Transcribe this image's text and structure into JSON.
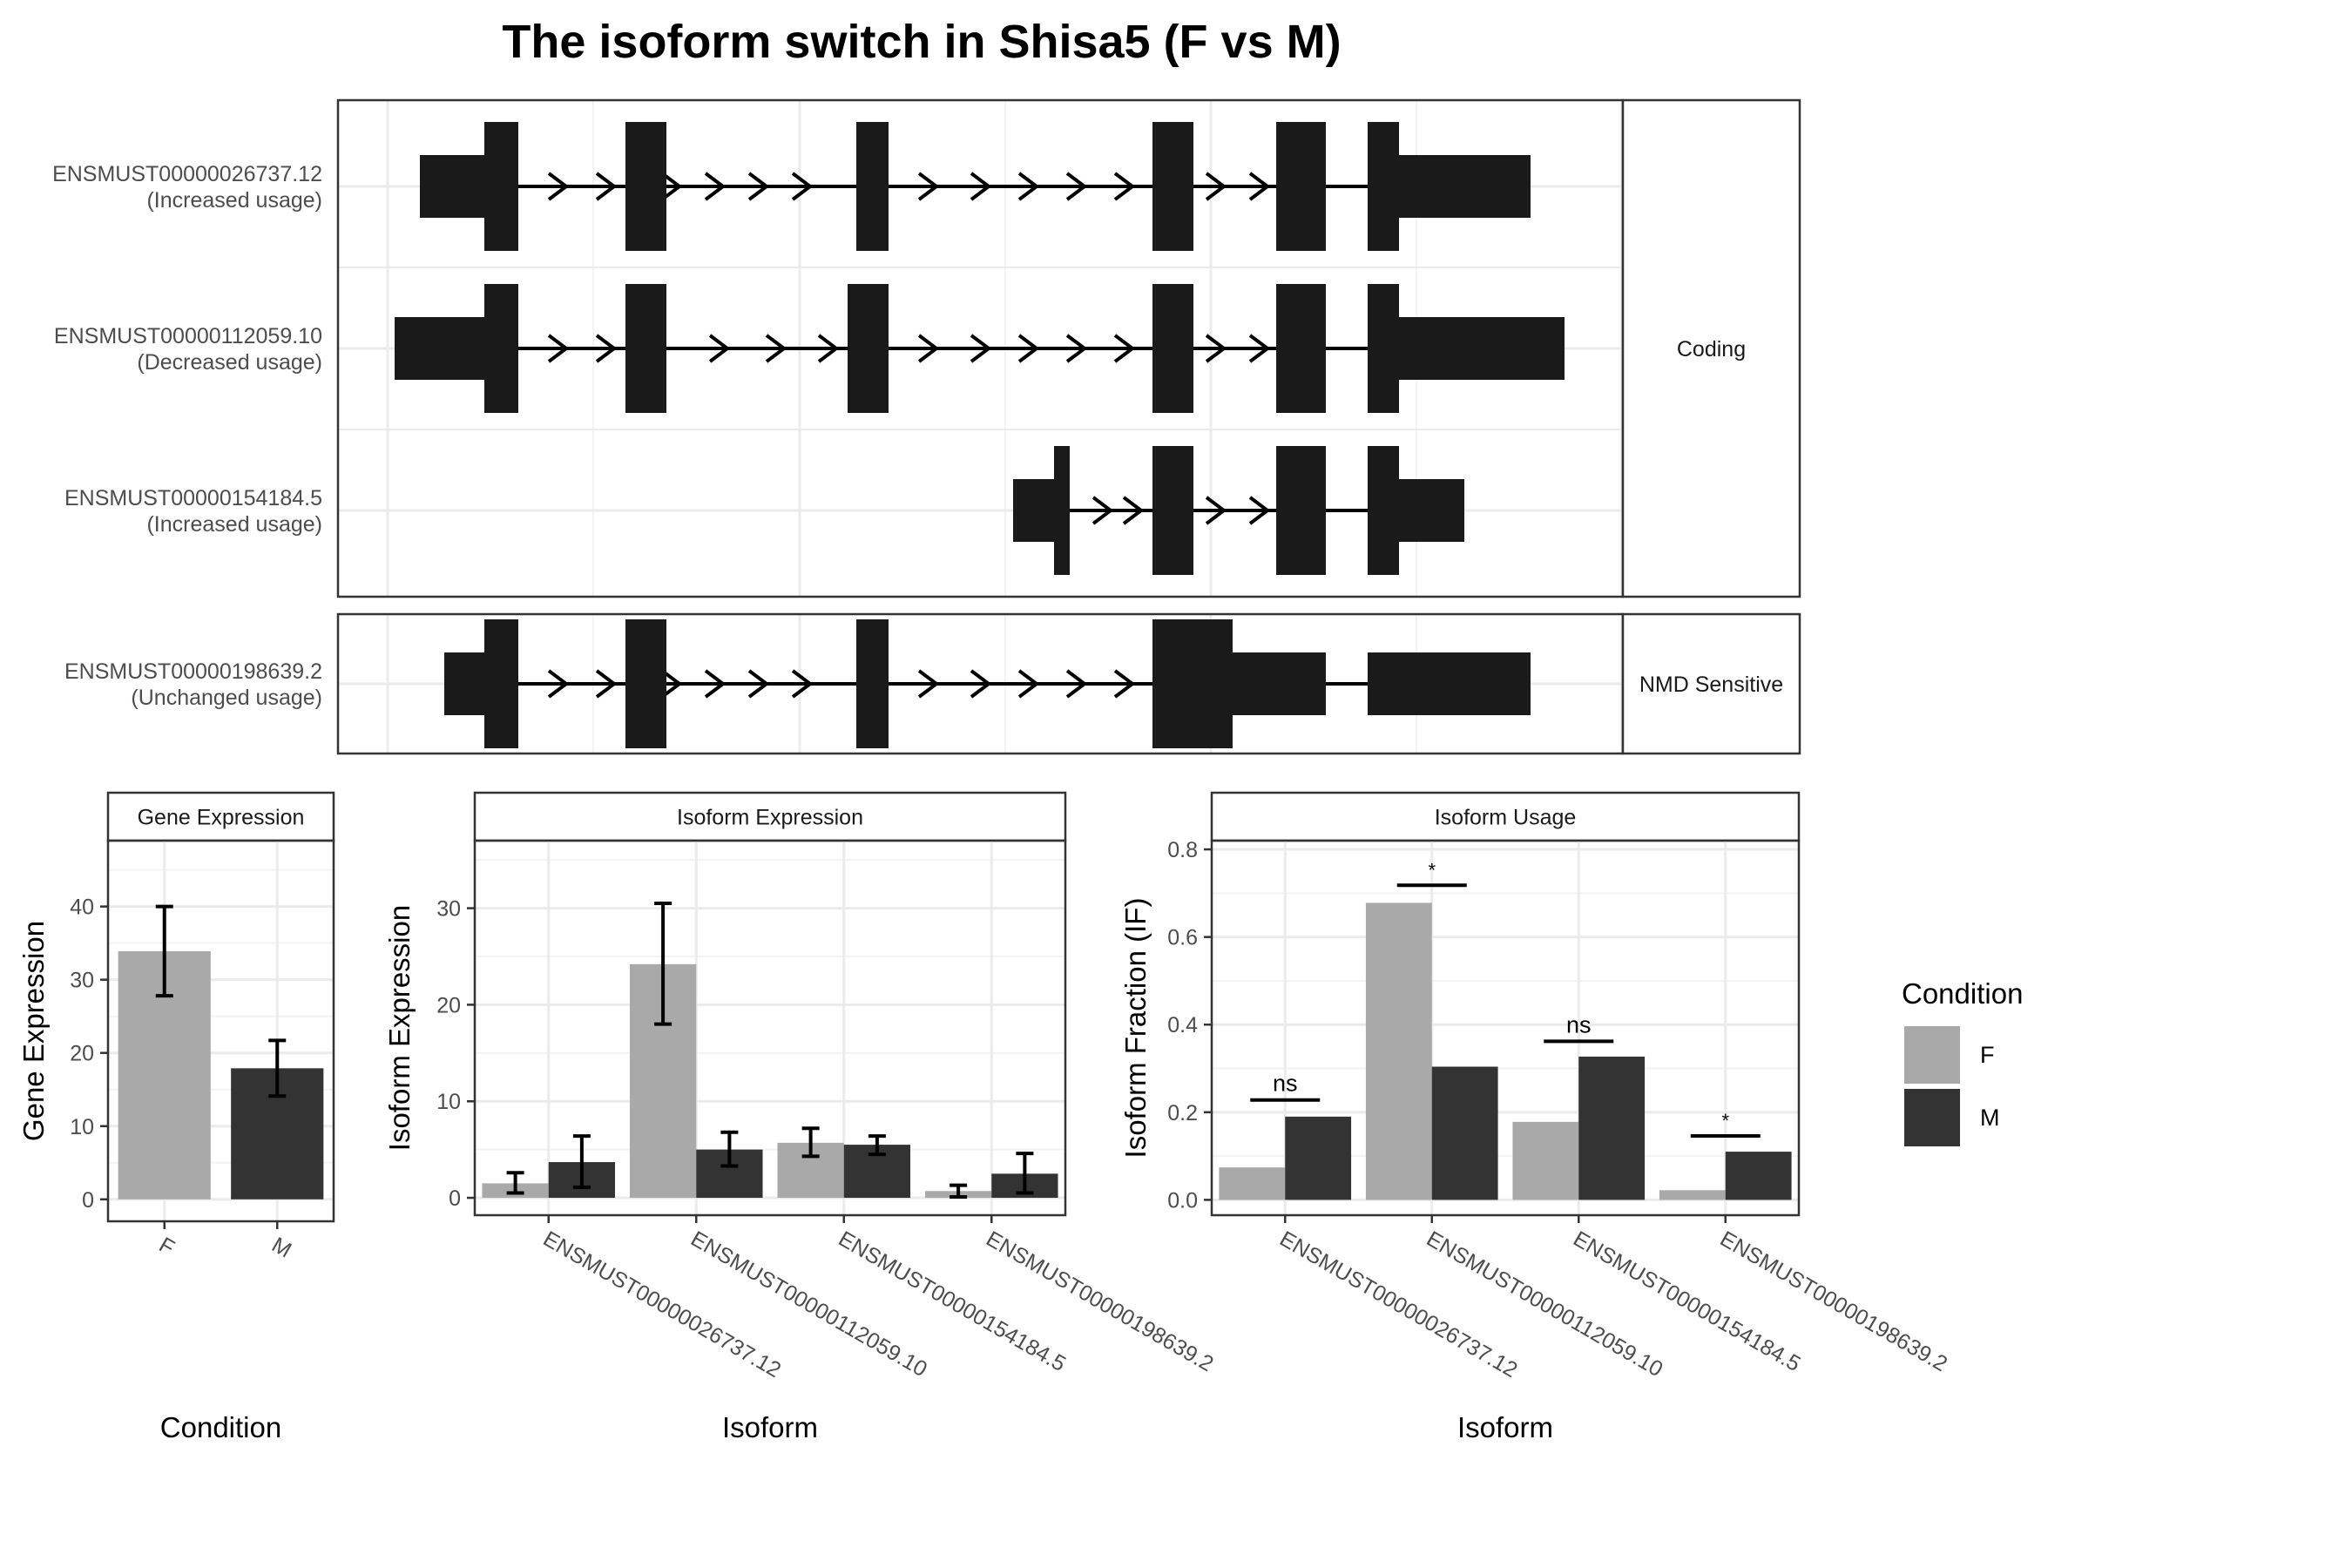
{
  "title": "The isoform switch in Shisa5 (F vs M)",
  "colors": {
    "F": "#a9a9a9",
    "M": "#333333",
    "exon": "#1a1a1a",
    "grid": "#ebebeb",
    "panel_border": "#333333"
  },
  "transcripts": {
    "groups": [
      {
        "strip": "Coding",
        "rows": [
          {
            "id": "ENSMUST00000026737.12",
            "usage": "(Increased usage)"
          },
          {
            "id": "ENSMUST00000112059.10",
            "usage": "(Decreased usage)"
          },
          {
            "id": "ENSMUST00000154184.5",
            "usage": "(Increased usage)"
          }
        ]
      },
      {
        "strip": "NMD Sensitive",
        "rows": [
          {
            "id": "ENSMUST00000198639.2",
            "usage": "(Unchanged usage)"
          }
        ]
      }
    ]
  },
  "chart_data": [
    {
      "type": "bar",
      "strip": "Gene Expression",
      "xlabel": "Condition",
      "ylabel": "Gene Expression",
      "ylim": [
        -3,
        49
      ],
      "yticks": [
        0,
        10,
        20,
        30,
        40
      ],
      "categories": [
        "F",
        "M"
      ],
      "values": [
        33.9,
        17.9
      ],
      "err_low": [
        27.8,
        14.1
      ],
      "err_high": [
        40.0,
        21.7
      ]
    },
    {
      "type": "bar",
      "strip": "Isoform Expression",
      "xlabel": "Isoform",
      "ylabel": "Isoform Expression",
      "ylim": [
        -1.8,
        37
      ],
      "yticks": [
        0,
        10,
        20,
        30
      ],
      "categories": [
        "ENSMUST00000026737.12",
        "ENSMUST00000112059.10",
        "ENSMUST00000154184.5",
        "ENSMUST00000198639.2"
      ],
      "series": [
        {
          "name": "F",
          "values": [
            1.5,
            24.2,
            5.7,
            0.7
          ],
          "err_low": [
            0.5,
            18.0,
            4.3,
            0.1
          ],
          "err_high": [
            2.6,
            30.5,
            7.2,
            1.3
          ]
        },
        {
          "name": "M",
          "values": [
            3.7,
            5.0,
            5.5,
            2.5
          ],
          "err_low": [
            1.1,
            3.3,
            4.5,
            0.5
          ],
          "err_high": [
            6.4,
            6.8,
            6.4,
            4.6
          ]
        }
      ]
    },
    {
      "type": "bar",
      "strip": "Isoform Usage",
      "xlabel": "Isoform",
      "ylabel": "Isoform Fraction (IF)",
      "ylim": [
        -0.035,
        0.82
      ],
      "yticks": [
        0.0,
        0.2,
        0.4,
        0.6,
        0.8
      ],
      "ytick_labels": [
        "0.0",
        "0.2",
        "0.4",
        "0.6",
        "0.8"
      ],
      "categories": [
        "ENSMUST00000026737.12",
        "ENSMUST00000112059.10",
        "ENSMUST00000154184.5",
        "ENSMUST00000198639.2"
      ],
      "series": [
        {
          "name": "F",
          "values": [
            0.074,
            0.678,
            0.178,
            0.022
          ]
        },
        {
          "name": "M",
          "values": [
            0.19,
            0.304,
            0.327,
            0.11
          ]
        }
      ],
      "significance": [
        {
          "label": "ns",
          "y": 0.228
        },
        {
          "label": "*",
          "y": 0.718
        },
        {
          "label": "ns",
          "y": 0.362
        },
        {
          "label": "*",
          "y": 0.146
        }
      ]
    }
  ],
  "legend": {
    "title": "Condition",
    "items": [
      {
        "label": "F",
        "color": "#a9a9a9"
      },
      {
        "label": "M",
        "color": "#333333"
      }
    ]
  }
}
